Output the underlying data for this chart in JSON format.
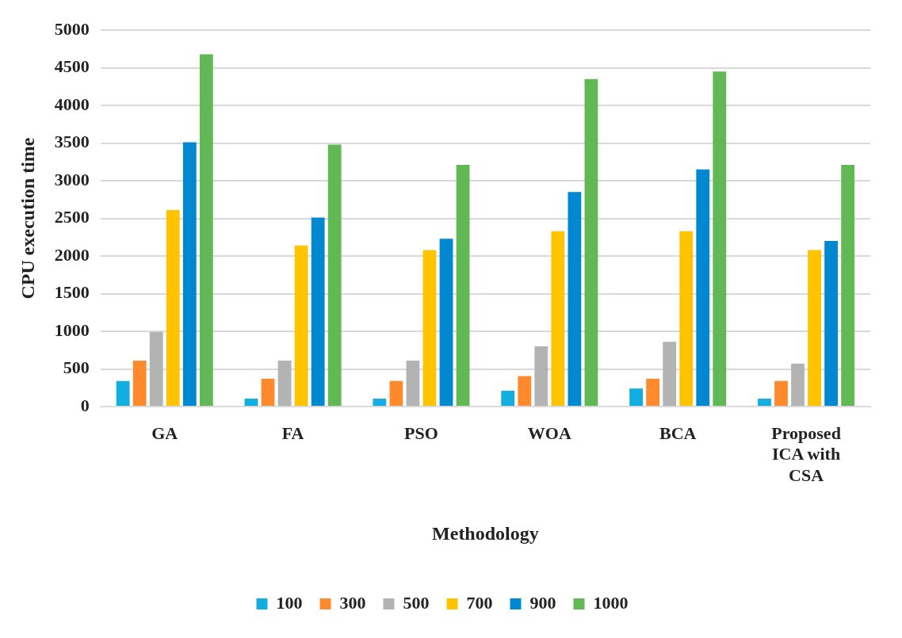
{
  "chart_data": {
    "type": "bar",
    "xlabel": "Methodology",
    "ylabel": "CPU execution time",
    "categories": [
      "GA",
      "FA",
      "PSO",
      "WOA",
      "BCA",
      "Proposed ICA with CSA"
    ],
    "series": [
      {
        "name": "100",
        "color": "#12aee0",
        "values": [
          340,
          105,
          105,
          210,
          240,
          105
        ]
      },
      {
        "name": "300",
        "color": "#ff8a2e",
        "values": [
          610,
          370,
          340,
          405,
          370,
          340
        ]
      },
      {
        "name": "500",
        "color": "#b3b3b3",
        "values": [
          990,
          610,
          610,
          800,
          860,
          570
        ]
      },
      {
        "name": "700",
        "color": "#ffc300",
        "values": [
          2610,
          2140,
          2080,
          2330,
          2330,
          2080
        ]
      },
      {
        "name": "900",
        "color": "#0088d1",
        "values": [
          3510,
          2510,
          2230,
          2850,
          3150,
          2200
        ]
      },
      {
        "name": "1000",
        "color": "#61b854",
        "values": [
          4680,
          3480,
          3210,
          4350,
          4450,
          3210
        ]
      }
    ],
    "ylim": [
      0,
      5000
    ],
    "yticks": [
      0,
      500,
      1000,
      1500,
      2000,
      2500,
      3000,
      3500,
      4000,
      4500,
      5000
    ],
    "grid": "y",
    "legend": "bottom"
  }
}
